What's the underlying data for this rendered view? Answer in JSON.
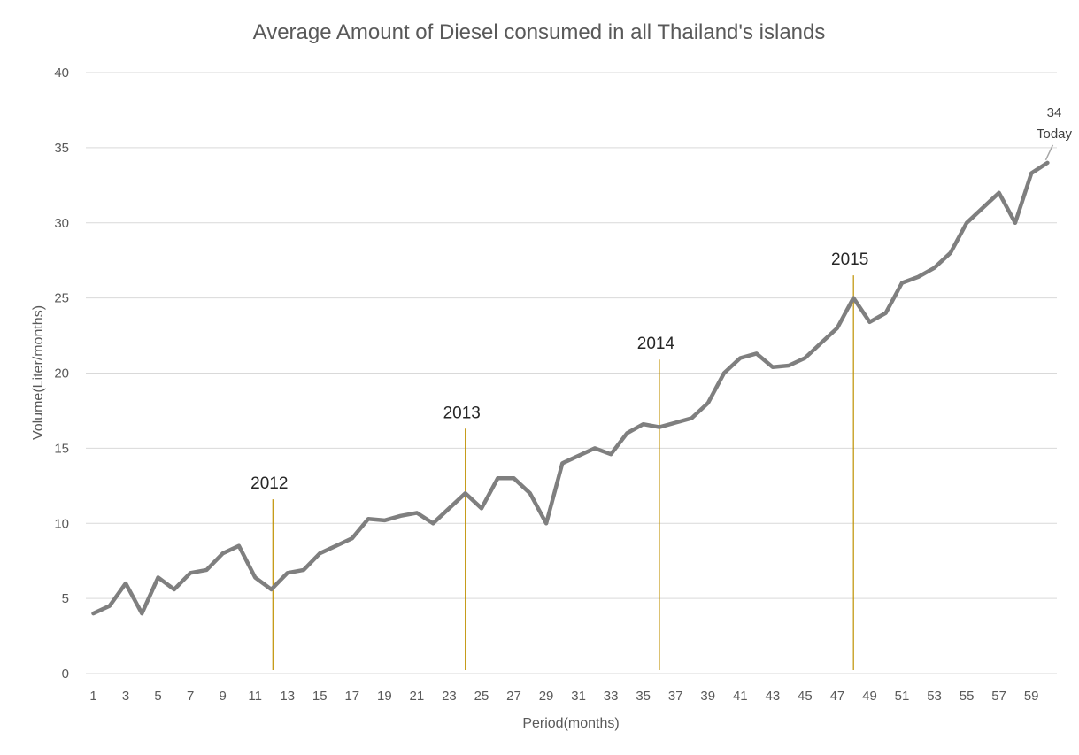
{
  "chart_data": {
    "type": "line",
    "title": "Average Amount of Diesel consumed  in all Thailand's islands",
    "xlabel": "Period(months)",
    "ylabel": "Volume(Liter/months)",
    "ylim": [
      0,
      40
    ],
    "yticks": [
      0,
      5,
      10,
      15,
      20,
      25,
      30,
      35,
      40
    ],
    "grid": true,
    "legend": "none",
    "x": [
      1,
      2,
      3,
      4,
      5,
      6,
      7,
      8,
      9,
      10,
      11,
      12,
      13,
      14,
      15,
      16,
      17,
      18,
      19,
      20,
      21,
      22,
      23,
      24,
      25,
      26,
      27,
      28,
      29,
      30,
      31,
      32,
      33,
      34,
      35,
      36,
      37,
      38,
      39,
      40,
      41,
      42,
      43,
      44,
      45,
      46,
      47,
      48,
      49,
      50,
      51,
      52,
      53,
      54,
      55,
      56,
      57,
      58,
      59,
      60
    ],
    "xticks": [
      1,
      3,
      5,
      7,
      9,
      11,
      13,
      15,
      17,
      19,
      21,
      23,
      25,
      27,
      29,
      31,
      33,
      35,
      37,
      39,
      41,
      43,
      45,
      47,
      49,
      51,
      53,
      55,
      57,
      59
    ],
    "series": [
      {
        "color": "#7f7f7f",
        "values": [
          4,
          4.5,
          6,
          4,
          6.4,
          5.6,
          6.7,
          6.9,
          8,
          8.5,
          6.4,
          5.6,
          6.7,
          6.9,
          8,
          8.5,
          9,
          10.3,
          10.2,
          10.5,
          10.7,
          10,
          11,
          12,
          11,
          13,
          13,
          12,
          10,
          14,
          14.5,
          15,
          14.6,
          16,
          16.6,
          16.4,
          16.7,
          17,
          18,
          20,
          21,
          21.3,
          20.4,
          20.5,
          21,
          22,
          23,
          25,
          23.4,
          24,
          26,
          26.4,
          27,
          28,
          30,
          31,
          32,
          30,
          33.3,
          34
        ]
      }
    ],
    "year_markers": [
      {
        "label": "2012",
        "x": 12.1,
        "top": 11.6
      },
      {
        "label": "2013",
        "x": 24,
        "top": 16.3
      },
      {
        "label": "2014",
        "x": 36,
        "top": 20.9
      },
      {
        "label": "2015",
        "x": 48,
        "top": 26.5
      }
    ],
    "marker_color": "#bf9000",
    "annotation": {
      "value_label": "34",
      "text": "Today",
      "x": 60,
      "y": 34
    }
  }
}
